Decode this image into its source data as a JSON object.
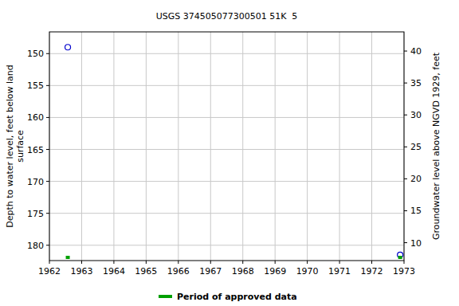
{
  "chart_data": {
    "type": "scatter",
    "title": "USGS 374505077300501 51K  5",
    "ylabel": "Depth to water level, feet below land surface",
    "y2label": "Groundwater level above NGVD 1929, feet",
    "x": [
      1962.57,
      1972.88
    ],
    "xlim": [
      1962,
      1973
    ],
    "xticks": [
      1962,
      1963,
      1964,
      1965,
      1966,
      1967,
      1968,
      1969,
      1970,
      1971,
      1972,
      1973
    ],
    "ylim": [
      182.4,
      146.6
    ],
    "yticks": [
      150,
      155,
      160,
      165,
      170,
      175,
      180
    ],
    "y2lim": [
      7.2,
      43.0
    ],
    "y2ticks": [
      10,
      15,
      20,
      25,
      30,
      35,
      40
    ],
    "grid": true,
    "legend": "bottom",
    "series": [
      {
        "name": "Depth to water level",
        "color": "#0000cc",
        "marker": "circle",
        "values": [
          149.0,
          181.5
        ]
      },
      {
        "name": "Period of approved data",
        "color": "#00a000",
        "marker": "square",
        "values": [
          181.9,
          181.9
        ]
      }
    ]
  }
}
